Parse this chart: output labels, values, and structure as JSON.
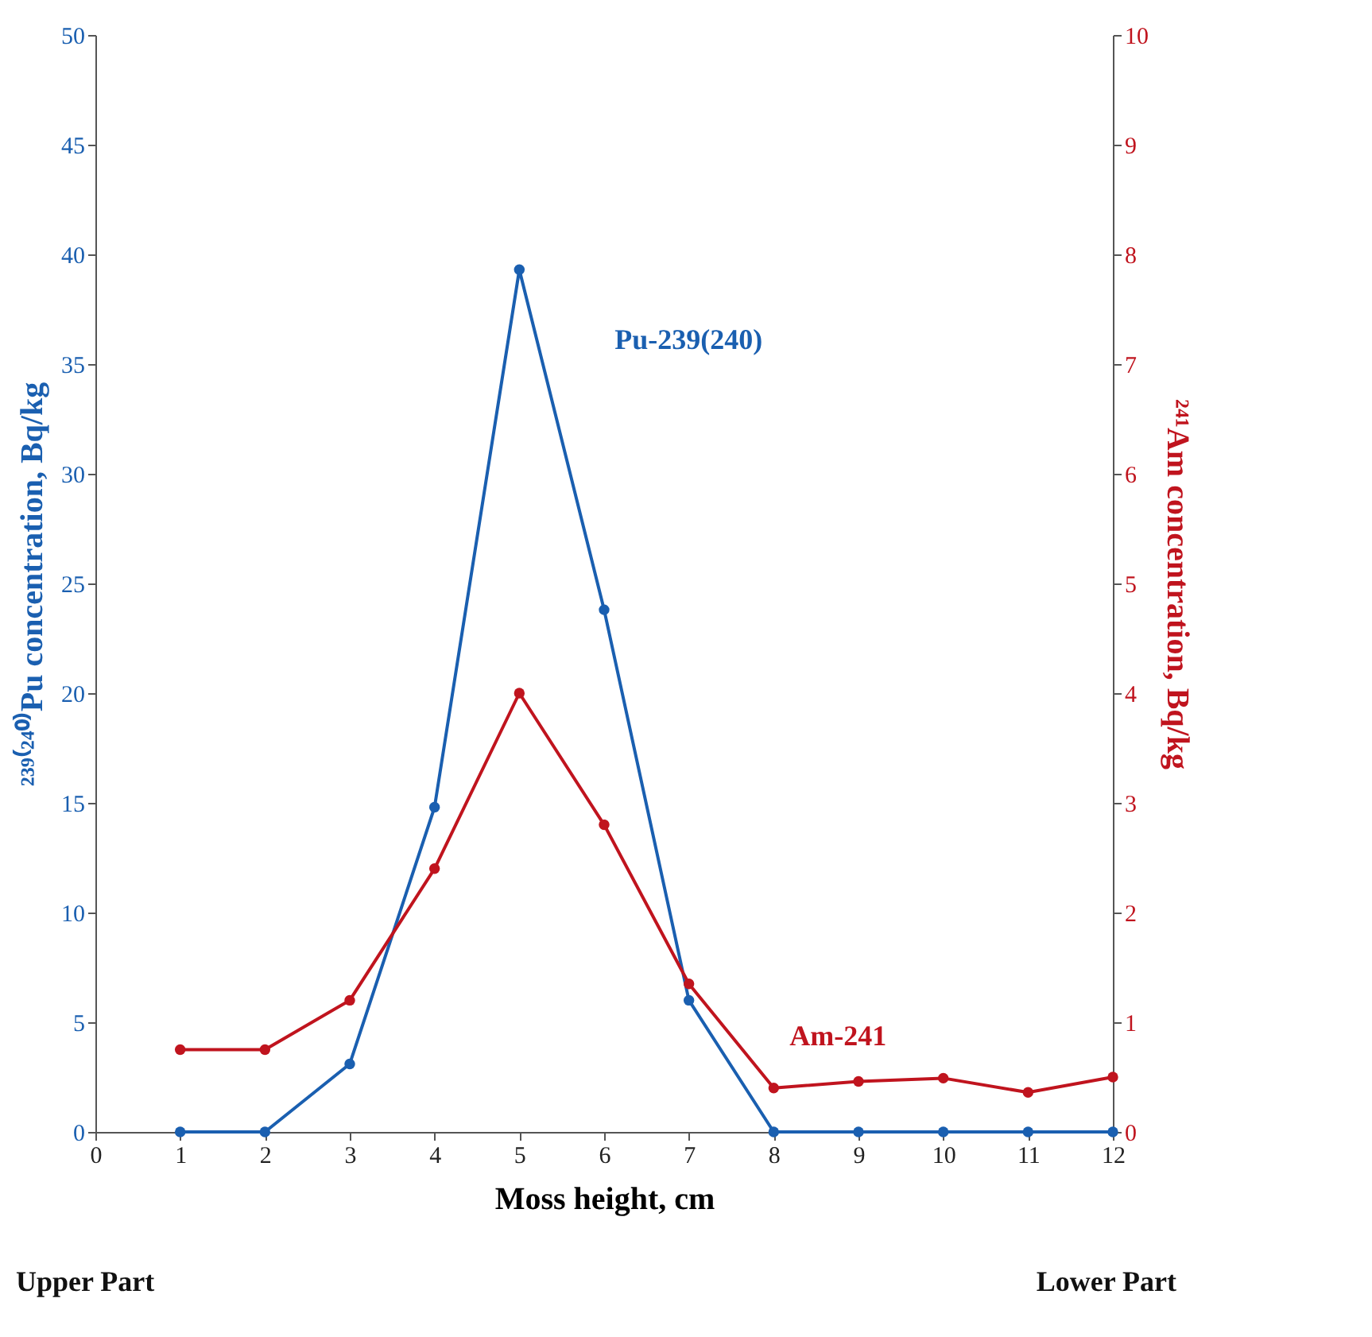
{
  "chart_data": {
    "type": "line",
    "xlabel": "Moss height, cm",
    "ylabel": "²³⁹⁽²⁴⁰⁾Pu concentration, Bq/kg",
    "y2label": "²⁴¹Am concentration, Bq/kg",
    "x": [
      1,
      2,
      3,
      4,
      5,
      6,
      7,
      8,
      9,
      10,
      11,
      12
    ],
    "series": [
      {
        "name": "Pu-239(240)",
        "color": "#1a5fb0",
        "values": [
          0,
          0,
          3.1,
          14.8,
          39.3,
          23.8,
          6.0,
          0,
          0,
          0,
          0,
          0
        ]
      },
      {
        "name": "Am-241",
        "color": "#c0141e",
        "axis": "y2",
        "values": [
          0.75,
          0.75,
          1.2,
          2.4,
          4.0,
          2.8,
          1.35,
          0.4,
          0.46,
          0.49,
          0.36,
          0.5
        ]
      }
    ],
    "xlim": [
      0,
      12
    ],
    "xticks": [
      0,
      1,
      2,
      3,
      4,
      5,
      6,
      7,
      8,
      9,
      10,
      11,
      12
    ],
    "ylim": [
      0,
      50
    ],
    "yticks": [
      0,
      5,
      10,
      15,
      20,
      25,
      30,
      35,
      40,
      45,
      50
    ],
    "y2lim": [
      0,
      10
    ],
    "y2ticks": [
      0,
      1,
      2,
      3,
      4,
      5,
      6,
      7,
      8,
      9,
      10
    ],
    "annotations": [
      "Upper Part",
      "Lower Part"
    ],
    "marker": "circle",
    "line_style": "solid",
    "grid": false
  }
}
